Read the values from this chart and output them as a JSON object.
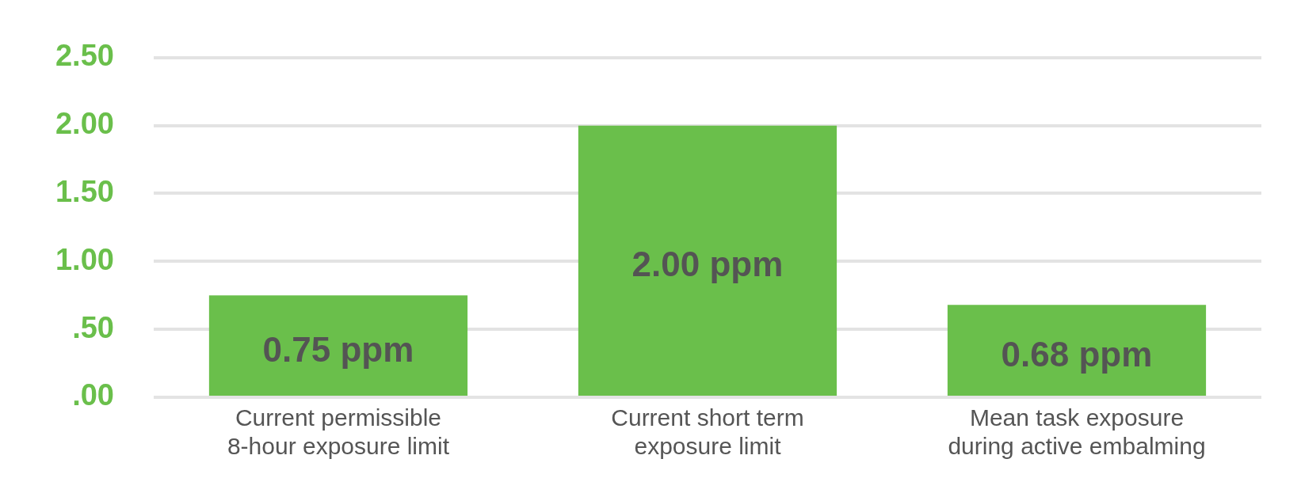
{
  "chart_data": {
    "type": "bar",
    "categories": [
      "Current permissible 8-hour exposure limit",
      "Current short term exposure limit",
      "Mean task exposure during active embalming"
    ],
    "values": [
      0.75,
      2.0,
      0.68
    ],
    "value_labels": [
      "0.75 ppm",
      "2.00 ppm",
      "0.68 ppm"
    ],
    "color": "#6abf4b",
    "ylim": [
      0,
      2.5
    ],
    "yticks": [
      {
        "value": 0,
        "label": ".00"
      },
      {
        "value": 0.5,
        "label": ".50"
      },
      {
        "value": 1,
        "label": "1.00"
      },
      {
        "value": 1.5,
        "label": "1.50"
      },
      {
        "value": 2,
        "label": "2.00"
      },
      {
        "value": 2.5,
        "label": "2.50"
      }
    ],
    "grid": "y",
    "legend": false
  }
}
